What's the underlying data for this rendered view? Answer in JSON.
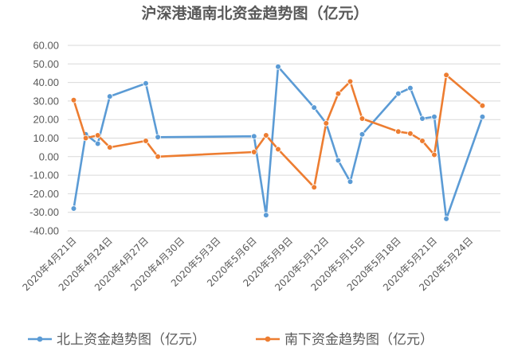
{
  "chart_data": {
    "type": "line",
    "title": "沪深港通南北资金趋势图（亿元）",
    "ylim": [
      -40,
      60
    ],
    "yticks": [
      "60.00",
      "50.00",
      "40.00",
      "30.00",
      "20.00",
      "10.00",
      "0.00",
      "-10.00",
      "-20.00",
      "-30.00",
      "-40.00"
    ],
    "xlim": [
      "2020-04-21",
      "2020-05-26"
    ],
    "xtick_labels": [
      "2020年4月21日",
      "2020年4月24日",
      "2020年4月27日",
      "2020年4月30日",
      "2020年5月3日",
      "2020年5月6日",
      "2020年5月9日",
      "2020年5月12日",
      "2020年5月15日",
      "2020年5月18日",
      "2020年5月21日",
      "2020年5月24日"
    ],
    "grid": "horizontal",
    "legend_position": "bottom",
    "series": [
      {
        "name": "北上资金趋势图（亿元）",
        "color": "#5B9BD5",
        "x": [
          "2020-04-21",
          "2020-04-22",
          "2020-04-23",
          "2020-04-24",
          "2020-04-27",
          "2020-04-28",
          "2020-05-06",
          "2020-05-07",
          "2020-05-08",
          "2020-05-11",
          "2020-05-12",
          "2020-05-13",
          "2020-05-14",
          "2020-05-15",
          "2020-05-18",
          "2020-05-19",
          "2020-05-20",
          "2020-05-21",
          "2020-05-22",
          "2020-05-25"
        ],
        "values": [
          -28.0,
          12.0,
          7.0,
          32.5,
          39.5,
          10.5,
          11.0,
          -31.5,
          48.5,
          26.5,
          18.0,
          -2.0,
          -13.5,
          12.0,
          34.0,
          37.0,
          20.5,
          21.5,
          -33.5,
          21.5
        ]
      },
      {
        "name": "南下资金趋势图（亿元）",
        "color": "#ED7D31",
        "x": [
          "2020-04-21",
          "2020-04-22",
          "2020-04-23",
          "2020-04-24",
          "2020-04-27",
          "2020-04-28",
          "2020-05-06",
          "2020-05-07",
          "2020-05-08",
          "2020-05-11",
          "2020-05-12",
          "2020-05-13",
          "2020-05-14",
          "2020-05-15",
          "2020-05-18",
          "2020-05-19",
          "2020-05-20",
          "2020-05-21",
          "2020-05-22",
          "2020-05-25"
        ],
        "values": [
          30.5,
          10.0,
          11.5,
          5.0,
          8.5,
          0.0,
          2.5,
          11.5,
          4.0,
          -16.5,
          18.0,
          34.0,
          40.5,
          20.5,
          13.5,
          12.5,
          8.5,
          1.0,
          44.0,
          27.5
        ]
      }
    ]
  }
}
